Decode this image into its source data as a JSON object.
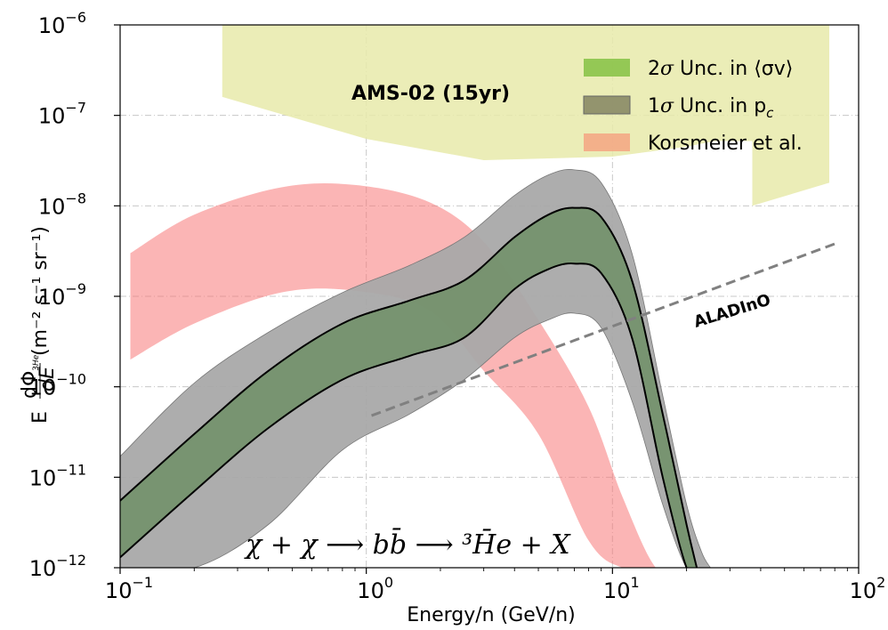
{
  "chart_data": {
    "type": "area",
    "x_scale": "log",
    "y_scale": "log",
    "xlim": [
      0.1,
      100
    ],
    "ylim": [
      1e-12,
      1e-06
    ],
    "xlabel": "Energy/n (GeV/n)",
    "ylabel_prefix": "E",
    "ylabel_frac_num": "dΦ",
    "ylabel_frac_num_sub": "3",
    "ylabel_frac_num_sub2": "He",
    "ylabel_frac_den": "dE",
    "ylabel_units": "(m⁻² s⁻¹ sr⁻¹)",
    "grid": true,
    "legend_position": "top-right",
    "x_ticks": [
      {
        "value": 0.1,
        "base": "10",
        "exp": "−1"
      },
      {
        "value": 1,
        "base": "10",
        "exp": "0"
      },
      {
        "value": 10,
        "base": "10",
        "exp": "1"
      },
      {
        "value": 100,
        "base": "10",
        "exp": "2"
      }
    ],
    "y_ticks": [
      {
        "value": 1e-12,
        "base": "10",
        "exp": "−12"
      },
      {
        "value": 1e-11,
        "base": "10",
        "exp": "−11"
      },
      {
        "value": 1e-10,
        "base": "10",
        "exp": "−10"
      },
      {
        "value": 1e-09,
        "base": "10",
        "exp": "−9"
      },
      {
        "value": 1e-08,
        "base": "10",
        "exp": "−8"
      },
      {
        "value": 1e-07,
        "base": "10",
        "exp": "−7"
      },
      {
        "value": 1e-06,
        "base": "10",
        "exp": "−6"
      }
    ],
    "legend": [
      {
        "label_main": "2",
        "label_sym": "σ",
        "label_rest": " Unc. in ⟨σv⟩",
        "color": "#8bc34a"
      },
      {
        "label_main": "1",
        "label_sym": "σ",
        "label_rest": " Unc. in p",
        "label_sub": "c",
        "color": "#8a8a66"
      },
      {
        "label_main": "",
        "label_sym": "",
        "label_rest": "Korsmeier et al.",
        "color": "#f4a582"
      }
    ],
    "series": [
      {
        "name": "AMS-02 (15yr)",
        "kind": "sensitivity_region",
        "color": "#e8eaaa",
        "upper_x": [
          0.26,
          76
        ],
        "upper_y": [
          1e-06,
          1e-06
        ],
        "lower": [
          {
            "x": 0.26,
            "y": 1.6e-07
          },
          {
            "x": 1.0,
            "y": 5.5e-08
          },
          {
            "x": 3.0,
            "y": 3.2e-08
          },
          {
            "x": 10.0,
            "y": 3.5e-08
          },
          {
            "x": 20.0,
            "y": 4.5e-08
          },
          {
            "x": 26.0,
            "y": 5.2e-08
          },
          {
            "x": 37.0,
            "y": 5.2e-08
          },
          {
            "x": 37.0,
            "y": 1e-08
          },
          {
            "x": 76.0,
            "y": 1.8e-08
          }
        ]
      },
      {
        "name": "Korsmeier et al.",
        "kind": "band",
        "color": "#f87878",
        "x": [
          0.11,
          0.2,
          0.45,
          0.9,
          1.8,
          3.0,
          5.0,
          8.0,
          11.0,
          15.0,
          19.0
        ],
        "upper": [
          3e-09,
          8e-09,
          1.6e-08,
          1.7e-08,
          1.1e-08,
          4e-09,
          5.5e-10,
          6e-11,
          6e-12,
          1e-12,
          1e-12
        ],
        "lower": [
          2e-10,
          5e-10,
          1.1e-09,
          1.15e-09,
          7e-10,
          1.5e-10,
          3e-11,
          2e-12,
          1e-12,
          1e-12,
          1e-12
        ]
      },
      {
        "name": "1σ Unc. in p_c",
        "kind": "band",
        "color": "#a9a9a9",
        "x": [
          0.1,
          0.2,
          0.4,
          0.8,
          1.5,
          2.5,
          4.0,
          5.5,
          7.0,
          9.0,
          12.0,
          16.0,
          20.0,
          23.0,
          25.0
        ],
        "upper": [
          1.7e-11,
          1.1e-10,
          4e-10,
          1.1e-09,
          2.2e-09,
          4.5e-09,
          1.3e-08,
          2.2e-08,
          2.5e-08,
          1.8e-08,
          3e-09,
          8e-11,
          5e-12,
          1.5e-12,
          1e-12
        ],
        "lower": [
          1e-12,
          1e-12,
          3e-12,
          2e-11,
          5e-11,
          1.2e-10,
          3.5e-10,
          5.5e-10,
          6.5e-10,
          4.5e-10,
          7e-11,
          5e-12,
          1e-12,
          1e-12,
          1e-12
        ]
      },
      {
        "name": "2σ Unc. in ⟨σv⟩",
        "kind": "band",
        "color": "#6f8f66",
        "x": [
          0.1,
          0.2,
          0.4,
          0.8,
          1.5,
          2.5,
          4.0,
          5.5,
          7.0,
          9.0,
          12.0,
          16.0,
          20.0,
          22.0
        ],
        "upper": [
          5.5e-12,
          3e-11,
          1.5e-10,
          5e-10,
          9e-10,
          1.5e-09,
          4.5e-09,
          8e-09,
          9.5e-09,
          7.5e-09,
          1.5e-09,
          5e-11,
          3e-12,
          1e-12
        ],
        "lower": [
          1.3e-12,
          7e-12,
          3.5e-11,
          1.2e-10,
          2.2e-10,
          3.5e-10,
          1.2e-09,
          2e-09,
          2.3e-09,
          1.8e-09,
          3.5e-10,
          1e-11,
          1e-12,
          1e-12
        ]
      },
      {
        "name": "ALADInO",
        "kind": "dashed_line",
        "color": "#808080",
        "x": [
          1.05,
          80.0
        ],
        "y": [
          4.8e-11,
          3.8e-09
        ]
      }
    ],
    "annotations": {
      "ams_label": "AMS-02 (15yr)",
      "aladino_label": "ALADInO",
      "formula": "χ + χ ⟶ bb̄ ⟶ ³H̄e + X"
    }
  }
}
